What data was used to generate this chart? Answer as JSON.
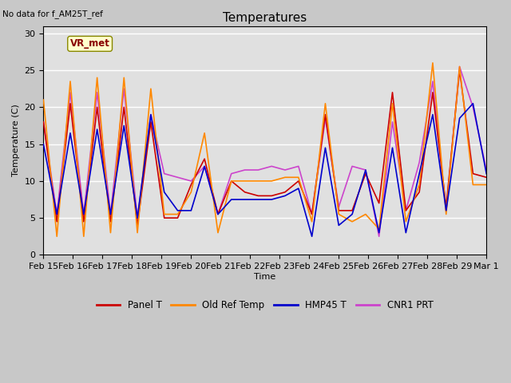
{
  "title": "Temperatures",
  "xlabel": "Time",
  "ylabel": "Temperature (C)",
  "top_left_text": "No data for f_AM25T_ref",
  "annotation_text": "VR_met",
  "ylim": [
    0,
    31
  ],
  "legend": [
    "Panel T",
    "Old Ref Temp",
    "HMP45 T",
    "CNR1 PRT"
  ],
  "legend_colors": [
    "#cc0000",
    "#ff8800",
    "#0000cc",
    "#cc44cc"
  ],
  "x_labels": [
    "Feb 15",
    "Feb 16",
    "Feb 17",
    "Feb 18",
    "Feb 19",
    "Feb 20",
    "Feb 21",
    "Feb 22",
    "Feb 23",
    "Feb 24",
    "Feb 25",
    "Feb 26",
    "Feb 27",
    "Feb 28",
    "Feb 29",
    "Mar 1"
  ],
  "panel_t": [
    18.0,
    4.5,
    20.5,
    4.5,
    20.0,
    4.5,
    20.0,
    4.0,
    18.0,
    5.0,
    5.0,
    9.5,
    13.0,
    5.5,
    10.0,
    8.5,
    8.0,
    8.0,
    8.5,
    10.0,
    5.5,
    19.0,
    6.0,
    6.0,
    11.0,
    7.0,
    22.0,
    6.0,
    8.5,
    22.0,
    6.5,
    25.0,
    11.0,
    10.5
  ],
  "old_ref_t": [
    21.0,
    2.5,
    23.5,
    2.5,
    24.0,
    3.0,
    24.0,
    3.0,
    22.5,
    5.5,
    5.5,
    8.5,
    16.5,
    3.0,
    10.0,
    10.0,
    10.0,
    10.0,
    10.5,
    10.5,
    4.5,
    20.5,
    5.5,
    4.5,
    5.5,
    3.5,
    20.5,
    4.5,
    9.5,
    26.0,
    5.5,
    25.5,
    9.5,
    9.5
  ],
  "hmp45_t": [
    15.0,
    5.5,
    16.5,
    5.5,
    17.0,
    5.5,
    17.5,
    5.0,
    19.0,
    8.5,
    6.0,
    6.0,
    12.0,
    5.5,
    7.5,
    7.5,
    7.5,
    7.5,
    8.0,
    9.0,
    2.5,
    14.5,
    4.0,
    5.5,
    11.5,
    3.0,
    14.5,
    3.0,
    11.0,
    19.0,
    6.0,
    18.5,
    20.5,
    11.0
  ],
  "cnr1_prt": [
    18.0,
    5.5,
    22.0,
    5.5,
    22.0,
    5.5,
    22.5,
    5.0,
    19.0,
    11.0,
    10.5,
    10.0,
    12.0,
    5.5,
    11.0,
    11.5,
    11.5,
    12.0,
    11.5,
    12.0,
    5.5,
    18.5,
    6.5,
    12.0,
    11.5,
    2.5,
    18.0,
    6.0,
    12.5,
    23.5,
    6.0,
    25.5,
    20.0,
    11.5
  ]
}
